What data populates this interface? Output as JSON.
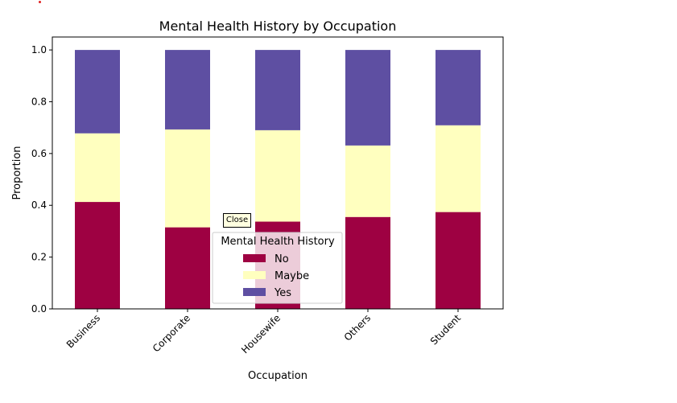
{
  "chart_data": {
    "type": "bar",
    "stacked": true,
    "title": "Mental Health History by Occupation",
    "xlabel": "Occupation",
    "ylabel": "Proportion",
    "categories": [
      "Business",
      "Corporate",
      "Housewife",
      "Others",
      "Student"
    ],
    "series": [
      {
        "name": "No",
        "color": "#9e0142",
        "values": [
          0.413,
          0.315,
          0.337,
          0.355,
          0.374
        ]
      },
      {
        "name": "Maybe",
        "color": "#ffffbf",
        "values": [
          0.265,
          0.378,
          0.353,
          0.276,
          0.335
        ]
      },
      {
        "name": "Yes",
        "color": "#5e4fa2",
        "values": [
          0.322,
          0.307,
          0.31,
          0.369,
          0.291
        ]
      }
    ],
    "ylim": [
      0,
      1.05
    ],
    "yticks": [
      "0.0",
      "0.2",
      "0.4",
      "0.6",
      "0.8",
      "1.0"
    ],
    "grid": false,
    "legend": {
      "title": "Mental Health History",
      "placement": "lower-center"
    }
  },
  "tooltip": {
    "close_label": "Close"
  }
}
